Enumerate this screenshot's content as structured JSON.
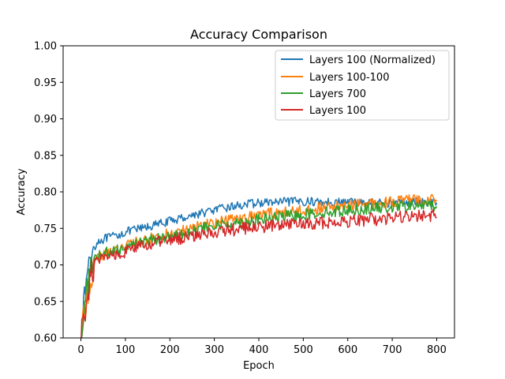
{
  "chart_data": {
    "type": "line",
    "title": "Accuracy Comparison",
    "xlabel": "Epoch",
    "ylabel": "Accuracy",
    "xlim": [
      -40,
      840
    ],
    "ylim": [
      0.6,
      1.0
    ],
    "xticks": [
      0,
      100,
      200,
      300,
      400,
      500,
      600,
      700,
      800
    ],
    "xtick_labels": [
      "0",
      "100",
      "200",
      "300",
      "400",
      "500",
      "600",
      "700",
      "800"
    ],
    "yticks": [
      0.6,
      0.65,
      0.7,
      0.75,
      0.8,
      0.85,
      0.9,
      0.95,
      1.0
    ],
    "ytick_labels": [
      "0.60",
      "0.65",
      "0.70",
      "0.75",
      "0.80",
      "0.85",
      "0.90",
      "0.95",
      "1.00"
    ],
    "grid": false,
    "legend_position": "top-right",
    "series": [
      {
        "name": "Layers 100 (Normalized)",
        "color": "#1f77b4",
        "x": [
          0,
          10,
          20,
          30,
          40,
          60,
          80,
          100,
          150,
          200,
          250,
          300,
          350,
          400,
          450,
          500,
          550,
          600,
          650,
          700,
          750,
          800
        ],
        "y": [
          0.6,
          0.67,
          0.71,
          0.725,
          0.733,
          0.737,
          0.74,
          0.745,
          0.752,
          0.76,
          0.768,
          0.775,
          0.781,
          0.785,
          0.786,
          0.787,
          0.786,
          0.786,
          0.785,
          0.785,
          0.786,
          0.786
        ]
      },
      {
        "name": "Layers 100-100",
        "color": "#ff7f0e",
        "x": [
          0,
          10,
          20,
          30,
          40,
          60,
          80,
          100,
          150,
          200,
          250,
          300,
          350,
          400,
          450,
          500,
          550,
          600,
          650,
          700,
          750,
          800
        ],
        "y": [
          0.6,
          0.64,
          0.68,
          0.7,
          0.71,
          0.716,
          0.722,
          0.727,
          0.735,
          0.743,
          0.751,
          0.758,
          0.764,
          0.768,
          0.772,
          0.775,
          0.778,
          0.781,
          0.784,
          0.787,
          0.789,
          0.79
        ]
      },
      {
        "name": "Layers 700",
        "color": "#2ca02c",
        "x": [
          0,
          10,
          20,
          30,
          40,
          60,
          80,
          100,
          150,
          200,
          250,
          300,
          350,
          400,
          450,
          500,
          550,
          600,
          650,
          700,
          750,
          800
        ],
        "y": [
          0.6,
          0.65,
          0.69,
          0.705,
          0.712,
          0.717,
          0.721,
          0.725,
          0.733,
          0.74,
          0.747,
          0.753,
          0.758,
          0.762,
          0.766,
          0.769,
          0.772,
          0.775,
          0.777,
          0.779,
          0.781,
          0.782
        ]
      },
      {
        "name": "Layers 100",
        "color": "#d62728",
        "x": [
          0,
          10,
          20,
          30,
          40,
          60,
          80,
          100,
          150,
          200,
          250,
          300,
          350,
          400,
          450,
          500,
          550,
          600,
          650,
          700,
          750,
          800
        ],
        "y": [
          0.6,
          0.64,
          0.68,
          0.7,
          0.706,
          0.711,
          0.715,
          0.719,
          0.727,
          0.734,
          0.74,
          0.745,
          0.749,
          0.752,
          0.754,
          0.756,
          0.758,
          0.76,
          0.762,
          0.764,
          0.766,
          0.768
        ]
      }
    ]
  }
}
